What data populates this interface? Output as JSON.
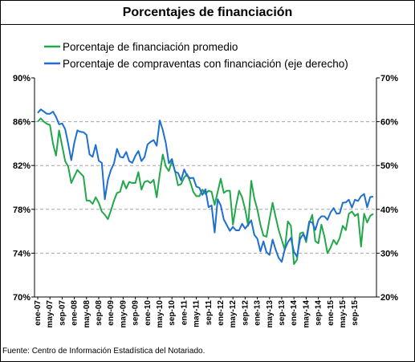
{
  "chart_data": {
    "type": "line",
    "title": "Porcentajes de financiación",
    "source": "Fuente: Centro de Información Estadística del Notariado.",
    "series": [
      {
        "name": "Porcentaje de financiación promedio",
        "axis": "left",
        "color": "#22a84a",
        "values": [
          86.0,
          86.3,
          86.0,
          85.8,
          85.7,
          84.0,
          82.9,
          85.2,
          83.8,
          82.4,
          81.9,
          80.4,
          81.0,
          81.6,
          81.3,
          81.0,
          78.8,
          78.8,
          78.5,
          79.1,
          78.6,
          77.8,
          77.5,
          77.1,
          77.9,
          78.8,
          79.5,
          79.6,
          80.6,
          79.9,
          80.5,
          80.4,
          80.4,
          81.4,
          79.8,
          80.5,
          80.6,
          80.4,
          80.7,
          79.1,
          81.2,
          83.0,
          81.9,
          81.5,
          82.4,
          81.5,
          80.2,
          80.3,
          80.9,
          81.2,
          80.5,
          79.6,
          79.2,
          79.2,
          79.8,
          79.4,
          79.7,
          79.6,
          78.4,
          79.6,
          80.8,
          79.5,
          79.7,
          79.7,
          76.6,
          78.3,
          79.7,
          79.1,
          78.0,
          76.5,
          80.6,
          79.0,
          78.0,
          76.6,
          75.6,
          75.5,
          77.1,
          78.6,
          77.3,
          76.1,
          75.2,
          74.3,
          76.9,
          76.5,
          73.0,
          73.4,
          75.8,
          75.9,
          75.0,
          76.7,
          77.5,
          75.1,
          74.9,
          76.6,
          75.5,
          74.0,
          74.5,
          75.2,
          74.8,
          75.4,
          76.5,
          76.1,
          77.6,
          77.8,
          77.4,
          77.6,
          74.6,
          77.6,
          76.8,
          77.4,
          77.6
        ]
      },
      {
        "name": "Porcentaje de compraventas con financiación (eje derecho)",
        "axis": "right",
        "color": "#1f6fd1",
        "values": [
          62.0,
          62.8,
          62.3,
          61.8,
          61.8,
          62.3,
          61.1,
          59.4,
          59.6,
          58.3,
          54.9,
          51.2,
          55.2,
          58.0,
          57.7,
          57.6,
          57.0,
          52.5,
          52.0,
          54.7,
          51.1,
          50.6,
          42.3,
          46.7,
          49.0,
          50.5,
          53.8,
          52.0,
          51.8,
          53.1,
          51.0,
          50.6,
          52.2,
          53.3,
          51.0,
          51.9,
          54.8,
          55.4,
          55.8,
          54.5,
          60.3,
          58.1,
          55.1,
          50.5,
          51.5,
          48.6,
          48.3,
          46.6,
          49.1,
          47.6,
          47.1,
          47.2,
          45.2,
          44.9,
          43.3,
          44.6,
          40.5,
          40.9,
          34.7,
          42.3,
          40.9,
          37.7,
          36.4,
          35.1,
          36.0,
          35.2,
          35.2,
          36.7,
          35.6,
          36.5,
          37.5,
          34.2,
          33.3,
          30.4,
          32.7,
          30.2,
          29.6,
          33.1,
          30.8,
          28.9,
          28.0,
          30.9,
          32.5,
          33.5,
          30.3,
          29.2,
          33.2,
          34.3,
          33.1,
          37.2,
          37.0,
          35.3,
          37.6,
          38.4,
          38.4,
          37.6,
          39.3,
          40.3,
          39.0,
          39.1,
          41.5,
          41.6,
          42.2,
          40.4,
          42.2,
          41.9,
          43.0,
          43.5,
          40.5,
          42.8,
          42.9
        ]
      }
    ],
    "y_left": {
      "min": 70,
      "max": 90,
      "ticks": [
        "70%",
        "74%",
        "78%",
        "82%",
        "86%",
        "90%"
      ]
    },
    "y_right": {
      "min": 20,
      "max": 70,
      "ticks": [
        "20%",
        "30%",
        "40%",
        "50%",
        "60%",
        "70%"
      ]
    },
    "x_labels": [
      "ene-07",
      "may-07",
      "sep-07",
      "ene-08",
      "may-08",
      "sep-08",
      "ene-09",
      "may-09",
      "sep-09",
      "ene-10",
      "may-10",
      "sep-10",
      "ene-11",
      "may-11",
      "sep-11",
      "ene-12",
      "may-12",
      "sep-12",
      "ene-13",
      "may-13",
      "sep-13",
      "ene-14",
      "may-14",
      "sep-14",
      "ene-15",
      "may-15",
      "sep-15"
    ],
    "x_label_step_months": 4,
    "gridlines": "horizontal-dashed",
    "legend_position": "top-left"
  }
}
